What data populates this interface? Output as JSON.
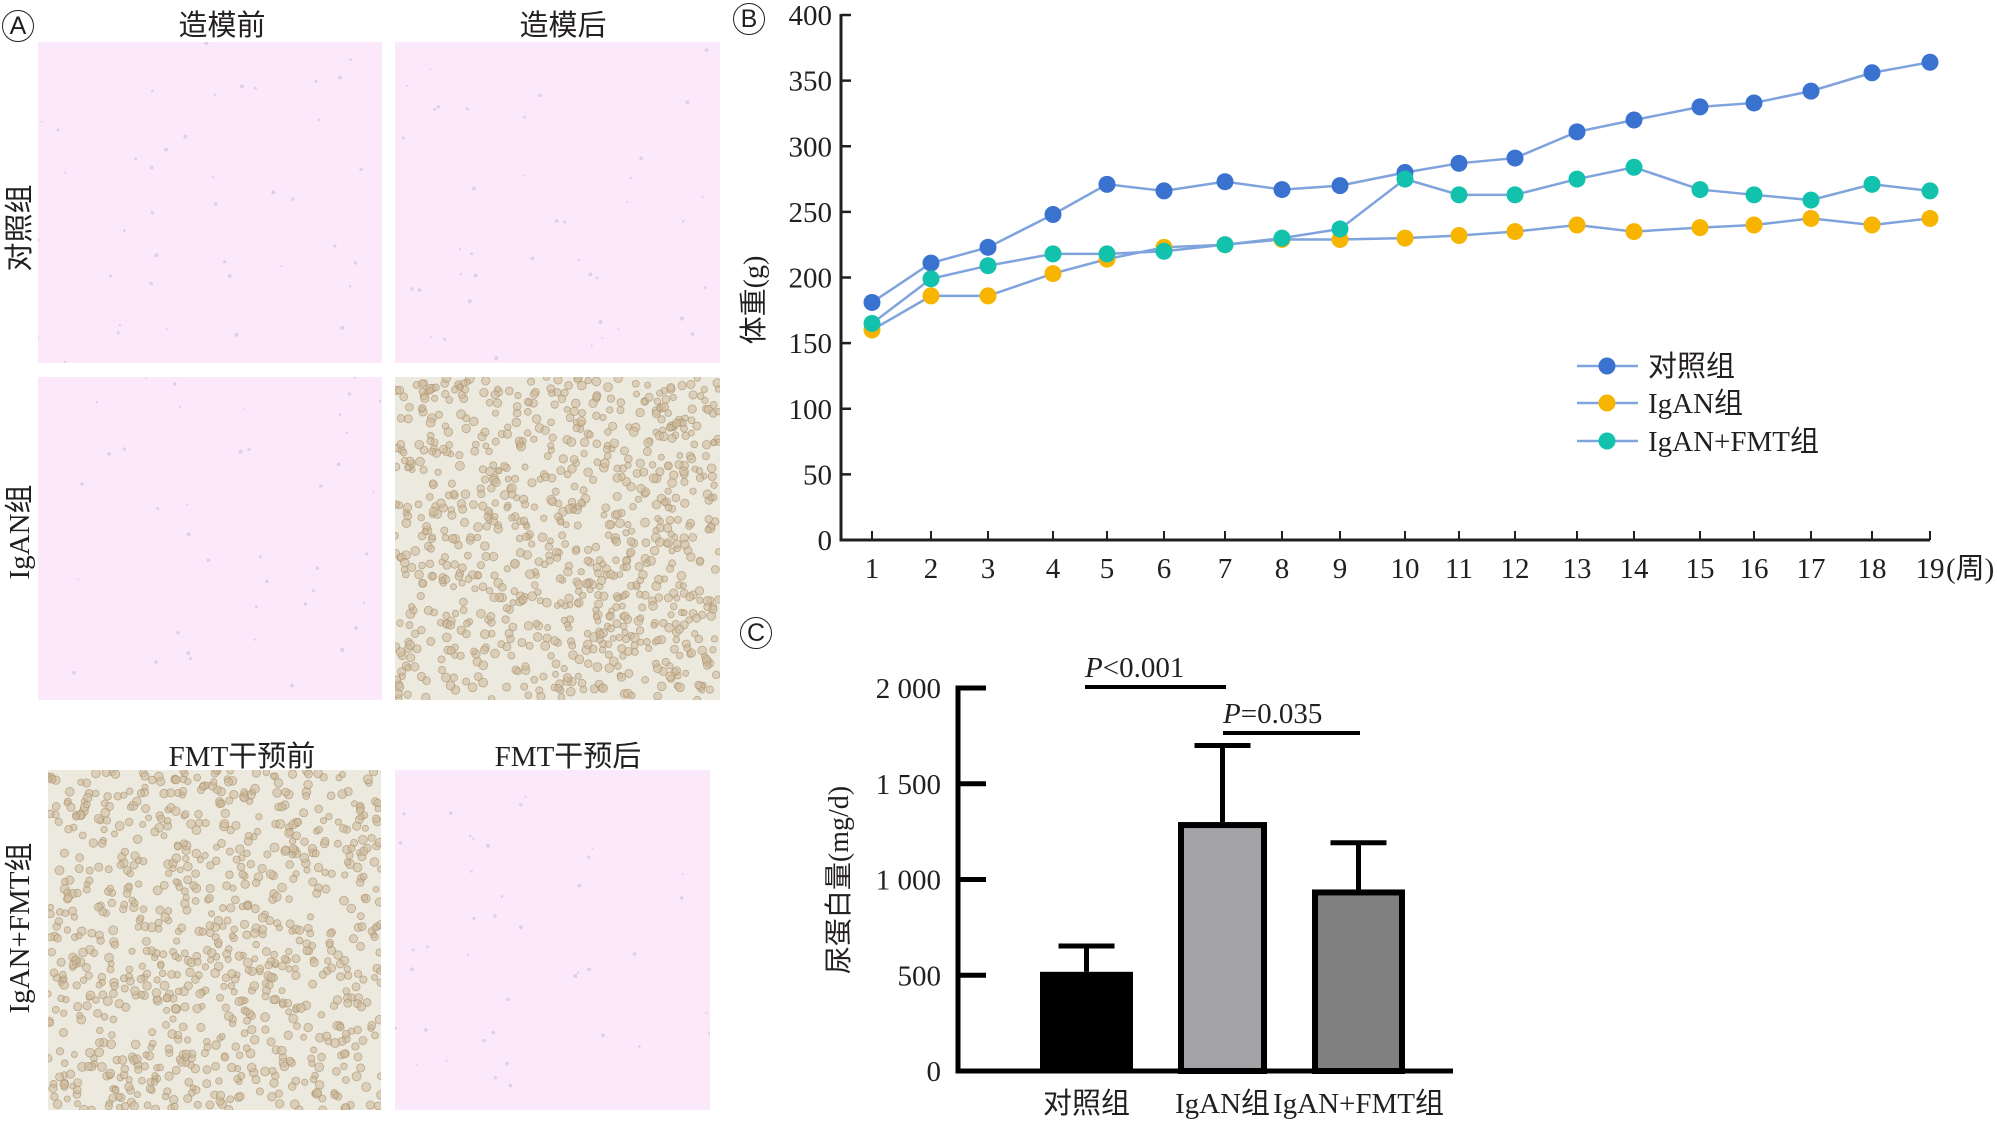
{
  "figure": {
    "panel_a": {
      "letter": "A",
      "top_columns": [
        "造模前",
        "造模后"
      ],
      "bottom_columns": [
        "FMT干预前",
        "FMT干预后"
      ],
      "rows": [
        "对照组",
        "IgAN组",
        "IgAN+FMT组"
      ],
      "images": [
        {
          "row": "对照组",
          "column": "造模前",
          "appearance": "clear"
        },
        {
          "row": "对照组",
          "column": "造模后",
          "appearance": "clear"
        },
        {
          "row": "IgAN组",
          "column": "造模前",
          "appearance": "clear"
        },
        {
          "row": "IgAN组",
          "column": "造模后",
          "appearance": "cells"
        },
        {
          "row": "IgAN+FMT组",
          "column": "FMT干预前",
          "appearance": "cells"
        },
        {
          "row": "IgAN+FMT组",
          "column": "FMT干预后",
          "appearance": "clear"
        }
      ]
    },
    "panel_b": {
      "letter": "B"
    },
    "panel_c": {
      "letter": "C"
    }
  },
  "chart_data": [
    {
      "panel": "B",
      "type": "line",
      "title": "",
      "xlabel": "(周)",
      "ylabel": "体重(g)",
      "x": [
        1,
        2,
        3,
        4,
        5,
        6,
        7,
        8,
        9,
        10,
        11,
        12,
        13,
        14,
        15,
        16,
        17,
        18,
        19
      ],
      "x_tick_labels": [
        "1",
        "2",
        "3",
        "4",
        "5",
        "6",
        "7",
        "8",
        "9",
        "10",
        "11",
        "12",
        "13",
        "14",
        "15",
        "16",
        "17",
        "18",
        "19"
      ],
      "ylim": [
        0,
        400
      ],
      "y_ticks": [
        0,
        50,
        100,
        150,
        200,
        250,
        300,
        350,
        400
      ],
      "grid": false,
      "legend_position": "center-right",
      "line_color": "#7fa3dc",
      "series": [
        {
          "name": "对照组",
          "color": "#3a72d0",
          "values": [
            181,
            211,
            223,
            248,
            271,
            266,
            273,
            267,
            270,
            280,
            287,
            291,
            311,
            320,
            330,
            333,
            342,
            356,
            364
          ]
        },
        {
          "name": "IgAN组",
          "color": "#f7b500",
          "values": [
            160,
            186,
            186,
            203,
            214,
            223,
            225,
            229,
            229,
            230,
            232,
            235,
            240,
            235,
            238,
            240,
            245,
            240,
            245
          ]
        },
        {
          "name": "IgAN+FMT组",
          "color": "#12c2ad",
          "values": [
            165,
            199,
            209,
            218,
            218,
            220,
            225,
            230,
            237,
            275,
            263,
            263,
            275,
            284,
            267,
            263,
            259,
            271,
            266
          ]
        }
      ]
    },
    {
      "panel": "C",
      "type": "bar",
      "title": "",
      "xlabel": "",
      "ylabel": "尿蛋白量(mg/d)",
      "categories": [
        "对照组",
        "IgAN组",
        "IgAN+FMT组"
      ],
      "values": [
        518,
        1300,
        948
      ],
      "error_upper": [
        653,
        1700,
        1192
      ],
      "colors": [
        "#000000",
        "#a3a3a7",
        "#808080"
      ],
      "ylim": [
        0,
        2000
      ],
      "y_ticks": [
        0,
        500,
        1000,
        1500,
        2000
      ],
      "y_tick_labels": [
        "0",
        "500",
        "1 000",
        "1 500",
        "2 000"
      ],
      "grid": false,
      "annotations": [
        {
          "from": "对照组",
          "to": "IgAN组",
          "italic_prefix": "P",
          "text": "<0.001"
        },
        {
          "from": "IgAN组",
          "to": "IgAN+FMT组",
          "italic_prefix": "P",
          "text": "=0.035"
        }
      ]
    }
  ]
}
